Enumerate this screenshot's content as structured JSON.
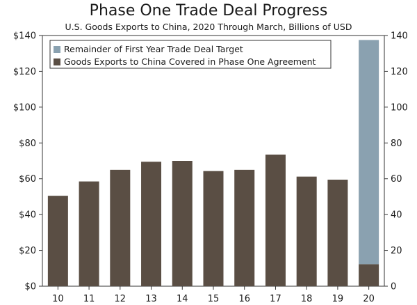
{
  "chart_data": {
    "type": "bar",
    "stacked": true,
    "title": "Phase One Trade Deal Progress",
    "subtitle": "U.S. Goods Exports to China, 2020 Through March, Billions of USD",
    "categories": [
      "10",
      "11",
      "12",
      "13",
      "14",
      "15",
      "16",
      "17",
      "18",
      "19",
      "20"
    ],
    "series": [
      {
        "name": "Goods Exports to China Covered in Phase One Agreement",
        "color": "#5a4e44",
        "values": [
          50.5,
          58.5,
          65,
          69.5,
          70,
          64.3,
          65,
          73.5,
          61.2,
          59.5,
          12.3
        ]
      },
      {
        "name": "Remainder of First Year Trade Deal Target",
        "color": "#8aa1b0",
        "values": [
          0,
          0,
          0,
          0,
          0,
          0,
          0,
          0,
          0,
          0,
          125.2
        ]
      }
    ],
    "ylim": [
      0,
      140
    ],
    "yticks": [
      0,
      20,
      40,
      60,
      80,
      100,
      120,
      140
    ],
    "ytick_labels": [
      "$0",
      "$20",
      "$40",
      "$60",
      "$80",
      "$100",
      "$120",
      "$140"
    ],
    "ytick_labels_right": [
      "0",
      "20",
      "40",
      "60",
      "80",
      "100",
      "120",
      "140"
    ],
    "legend": {
      "placement": "top-left",
      "items": [
        {
          "label": "Remainder of First Year Trade Deal Target",
          "color": "#8aa1b0"
        },
        {
          "label": "Goods Exports to China Covered in Phase One Agreement",
          "color": "#5a4e44"
        }
      ]
    },
    "grid": false
  }
}
